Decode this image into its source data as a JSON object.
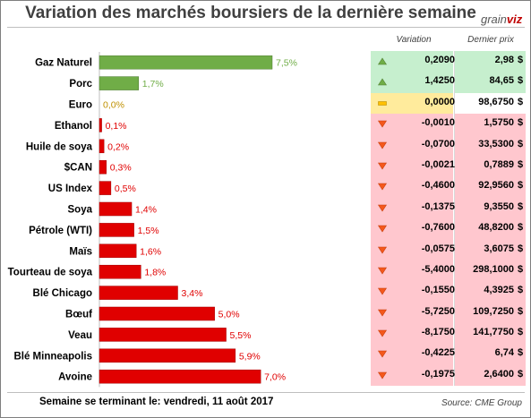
{
  "header": {
    "title": "Variation des marchés boursiers de la dernière semaine",
    "logo_part1": "grain",
    "logo_part2": "viz"
  },
  "table_headers": {
    "variation": "Variation",
    "price": "Dernier prix"
  },
  "footer": {
    "week_text": "Semaine se terminant le: vendredi, 11 août 2017",
    "source": "Source: CME Group"
  },
  "colors": {
    "up": "#70ad47",
    "neutral": "#bf9000",
    "down": "#e00000",
    "up_bg": "#c6efce",
    "neutral_bg": "#ffeb9c",
    "down_bg": "#ffc7ce"
  },
  "chart_data": {
    "type": "bar",
    "orientation": "horizontal",
    "title": "Variation des marchés boursiers de la dernière semaine",
    "categories": [
      "Gaz Naturel",
      "Porc",
      "Euro",
      "Ethanol",
      "Huile de soya",
      "$CAN",
      "US Index",
      "Soya",
      "Pétrole (WTI)",
      "Maïs",
      "Tourteau de soya",
      "Blé Chicago",
      "Bœuf",
      "Veau",
      "Blé Minneapolis",
      "Avoine"
    ],
    "values": [
      7.5,
      1.7,
      0.0,
      0.1,
      0.2,
      0.3,
      0.5,
      1.4,
      1.5,
      1.6,
      1.8,
      3.4,
      5.0,
      5.5,
      5.9,
      7.0
    ],
    "value_labels": [
      "7,5%",
      "1,7%",
      "0,0%",
      "0,1%",
      "0,2%",
      "0,3%",
      "0,5%",
      "1,4%",
      "1,5%",
      "1,6%",
      "1,8%",
      "3,4%",
      "5,0%",
      "5,5%",
      "5,9%",
      "7,0%"
    ],
    "direction": [
      "up",
      "up",
      "neutral",
      "down",
      "down",
      "down",
      "down",
      "down",
      "down",
      "down",
      "down",
      "down",
      "down",
      "down",
      "down",
      "down"
    ],
    "xlim": [
      0,
      7.5
    ]
  },
  "table_rows": [
    {
      "direction": "up",
      "variation": "0,2090",
      "price": "2,98",
      "currency": "$"
    },
    {
      "direction": "up",
      "variation": "1,4250",
      "price": "84,65",
      "currency": "$"
    },
    {
      "direction": "neutral",
      "variation": "0,0000",
      "price": "98,6750",
      "currency": "$"
    },
    {
      "direction": "down",
      "variation": "-0,0010",
      "price": "1,5750",
      "currency": "$"
    },
    {
      "direction": "down",
      "variation": "-0,0700",
      "price": "33,5300",
      "currency": "$"
    },
    {
      "direction": "down",
      "variation": "-0,0021",
      "price": "0,7889",
      "currency": "$"
    },
    {
      "direction": "down",
      "variation": "-0,4600",
      "price": "92,9560",
      "currency": "$"
    },
    {
      "direction": "down",
      "variation": "-0,1375",
      "price": "9,3550",
      "currency": "$"
    },
    {
      "direction": "down",
      "variation": "-0,7600",
      "price": "48,8200",
      "currency": "$"
    },
    {
      "direction": "down",
      "variation": "-0,0575",
      "price": "3,6075",
      "currency": "$"
    },
    {
      "direction": "down",
      "variation": "-5,4000",
      "price": "298,1000",
      "currency": "$"
    },
    {
      "direction": "down",
      "variation": "-0,1550",
      "price": "4,3925",
      "currency": "$"
    },
    {
      "direction": "down",
      "variation": "-5,7250",
      "price": "109,7250",
      "currency": "$"
    },
    {
      "direction": "down",
      "variation": "-8,1750",
      "price": "141,7750",
      "currency": "$"
    },
    {
      "direction": "down",
      "variation": "-0,4225",
      "price": "6,74",
      "currency": "$"
    },
    {
      "direction": "down",
      "variation": "-0,1975",
      "price": "2,6400",
      "currency": "$"
    }
  ]
}
